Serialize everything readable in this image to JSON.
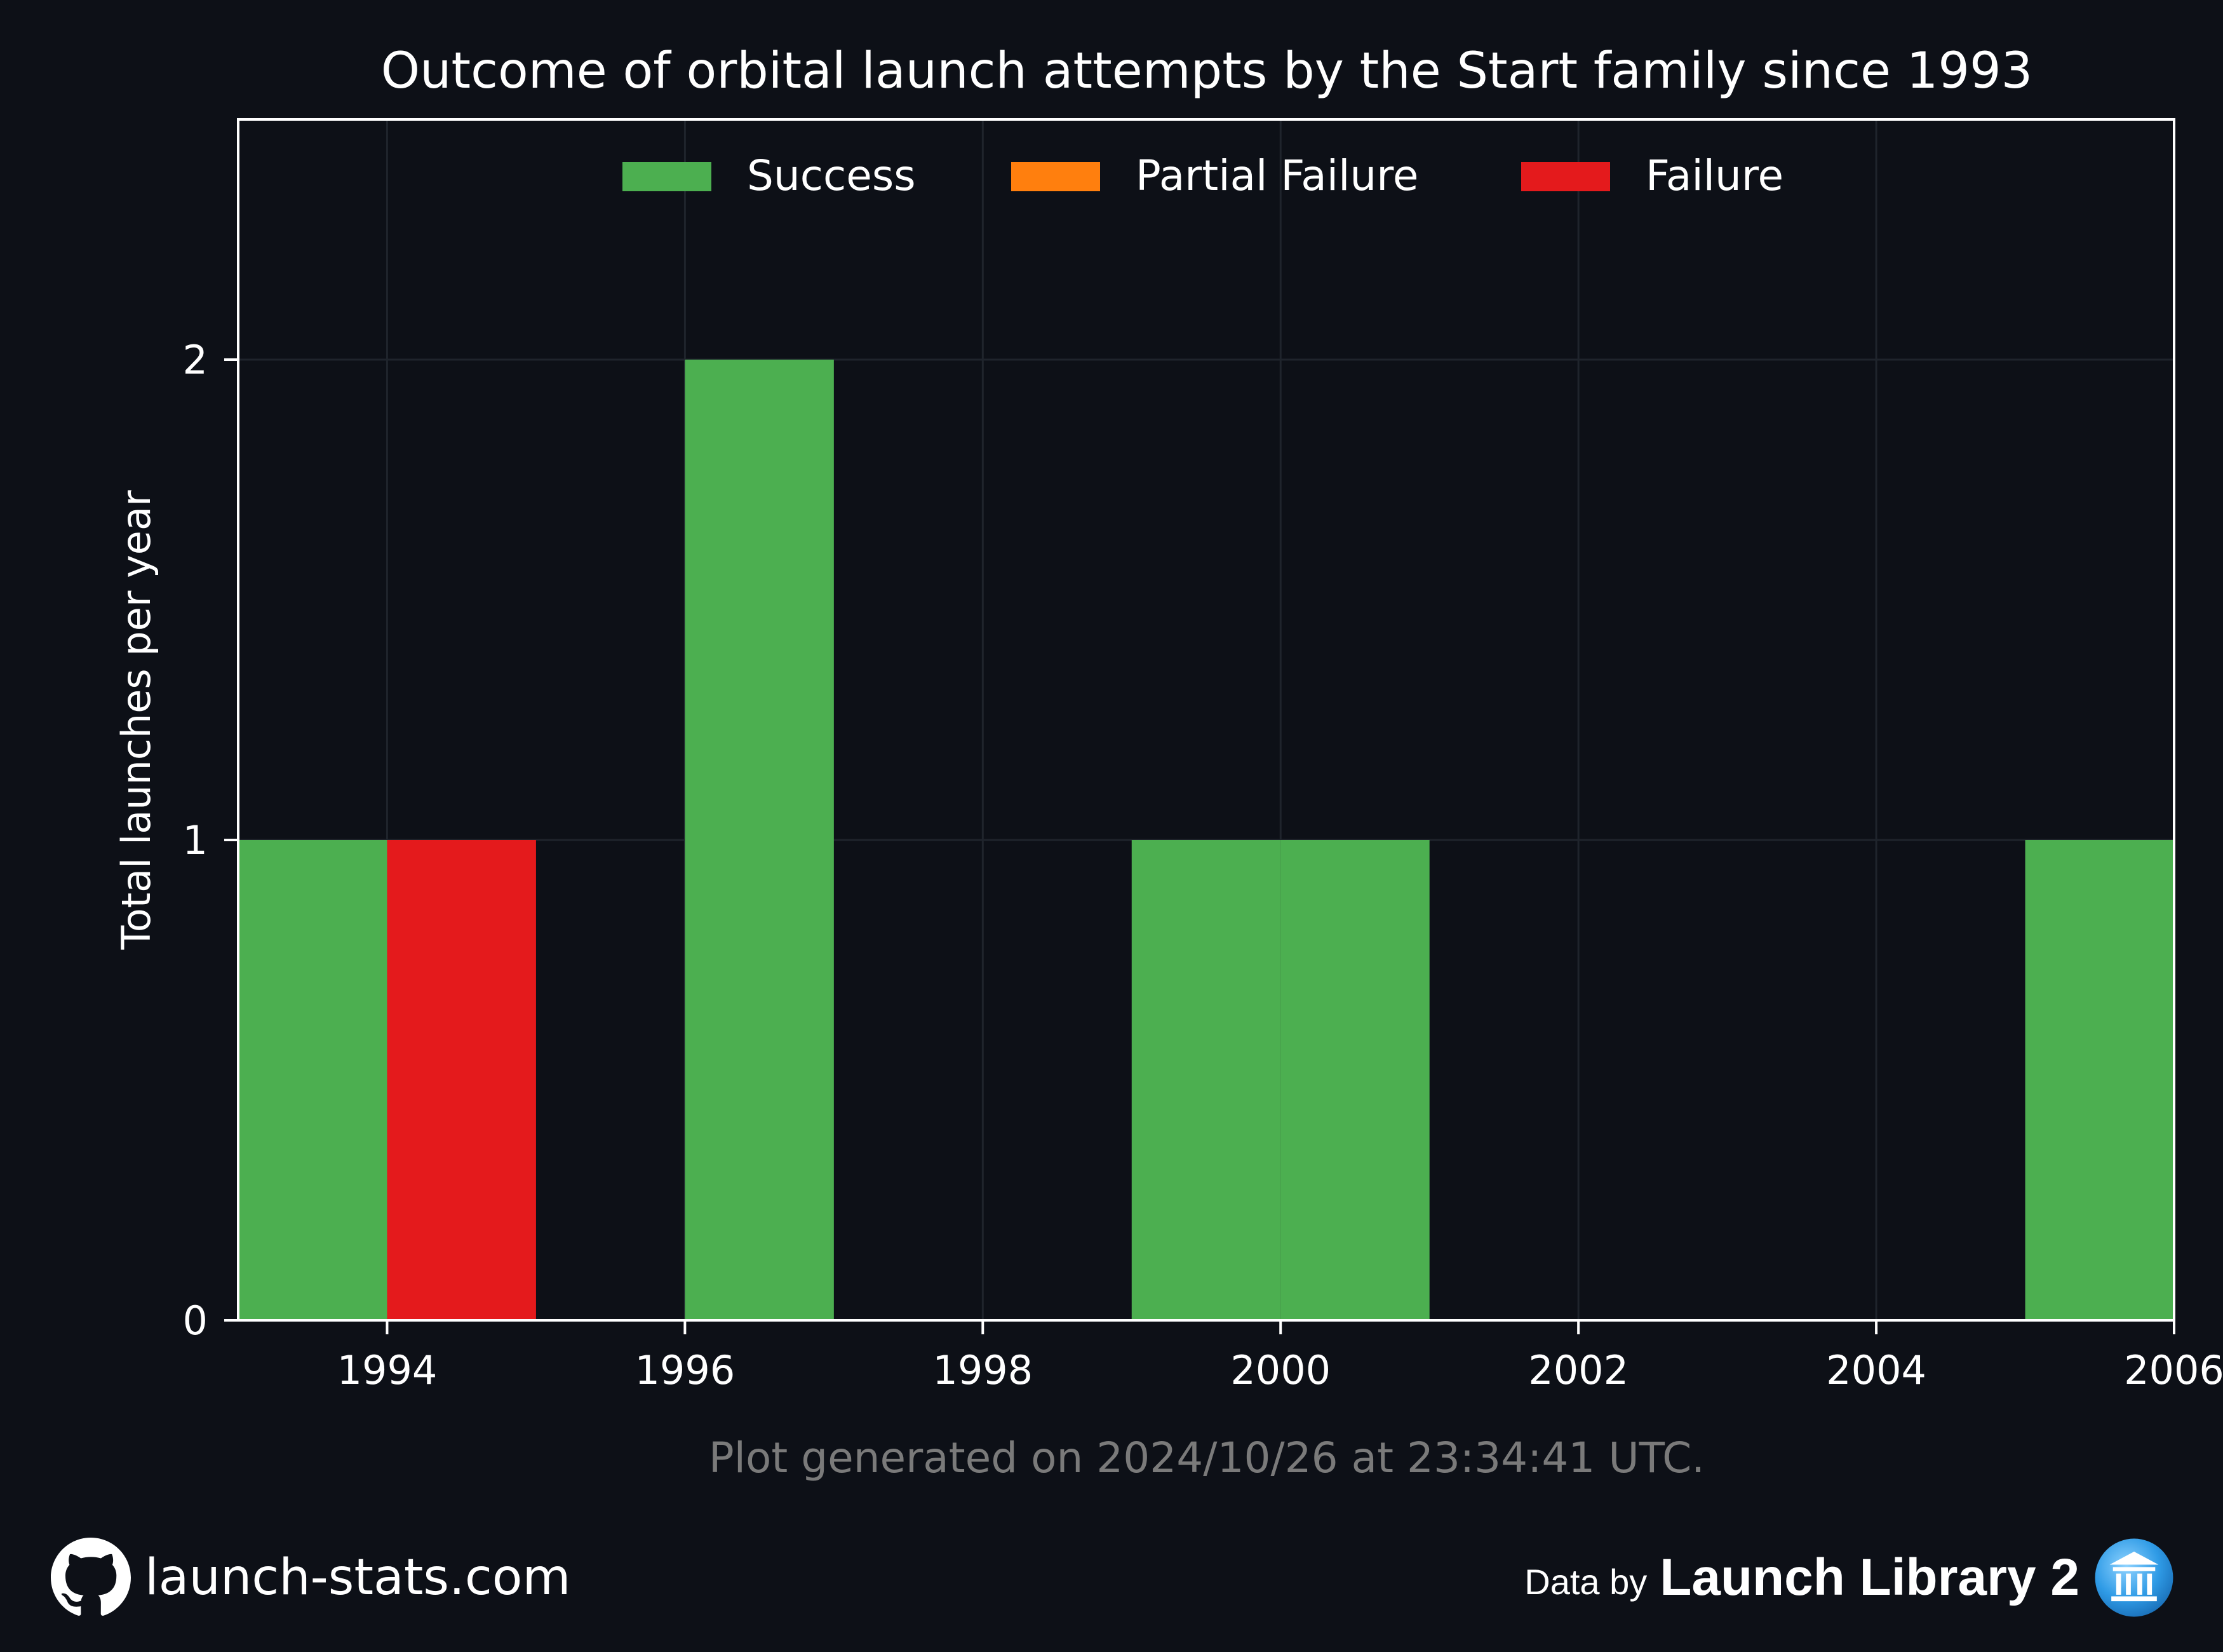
{
  "chart_data": {
    "type": "bar",
    "stacked": true,
    "title": "Outcome of orbital launch attempts by the Start family since 1993",
    "xlabel": "",
    "ylabel": "Total launches per year",
    "x": [
      1994,
      1995,
      1996,
      1997,
      1998,
      1999,
      2000,
      2001,
      2002,
      2003,
      2004,
      2005,
      2006
    ],
    "xlim": [
      1993.5,
      2006.5
    ],
    "ylim": [
      0,
      2.5
    ],
    "xticks": [
      "1994",
      "1996",
      "1998",
      "2000",
      "2002",
      "2004",
      "2006"
    ],
    "xtick_values": [
      1994.5,
      1996.5,
      1998.5,
      2000.5,
      2002.5,
      2004.5,
      2006.5
    ],
    "yticks": [
      "0",
      "1",
      "2"
    ],
    "ytick_values": [
      0,
      1,
      2
    ],
    "grid": true,
    "legend_position": "top-center",
    "series": [
      {
        "name": "Success",
        "color": "#4caf50",
        "values": [
          1,
          0,
          0,
          2,
          0,
          0,
          1,
          1,
          0,
          0,
          0,
          0,
          1
        ]
      },
      {
        "name": "Partial Failure",
        "color": "#ff7f0e",
        "values": [
          0,
          0,
          0,
          0,
          0,
          0,
          0,
          0,
          0,
          0,
          0,
          0,
          0
        ]
      },
      {
        "name": "Failure",
        "color": "#e41a1c",
        "values": [
          0,
          1,
          0,
          0,
          0,
          0,
          0,
          0,
          0,
          0,
          0,
          0,
          0
        ]
      }
    ],
    "caption": "Plot generated on 2024/10/26 at 23:34:41 UTC."
  },
  "footer": {
    "site": "launch-stats.com",
    "site_icon": "github-icon",
    "data_by": "Data by",
    "source": "Launch Library 2",
    "source_icon": "launch-library-logo-icon"
  },
  "colors": {
    "background": "#0d1017",
    "grid": "#1f242c",
    "axis": "#ffffff",
    "caption": "#7a7a7a"
  }
}
